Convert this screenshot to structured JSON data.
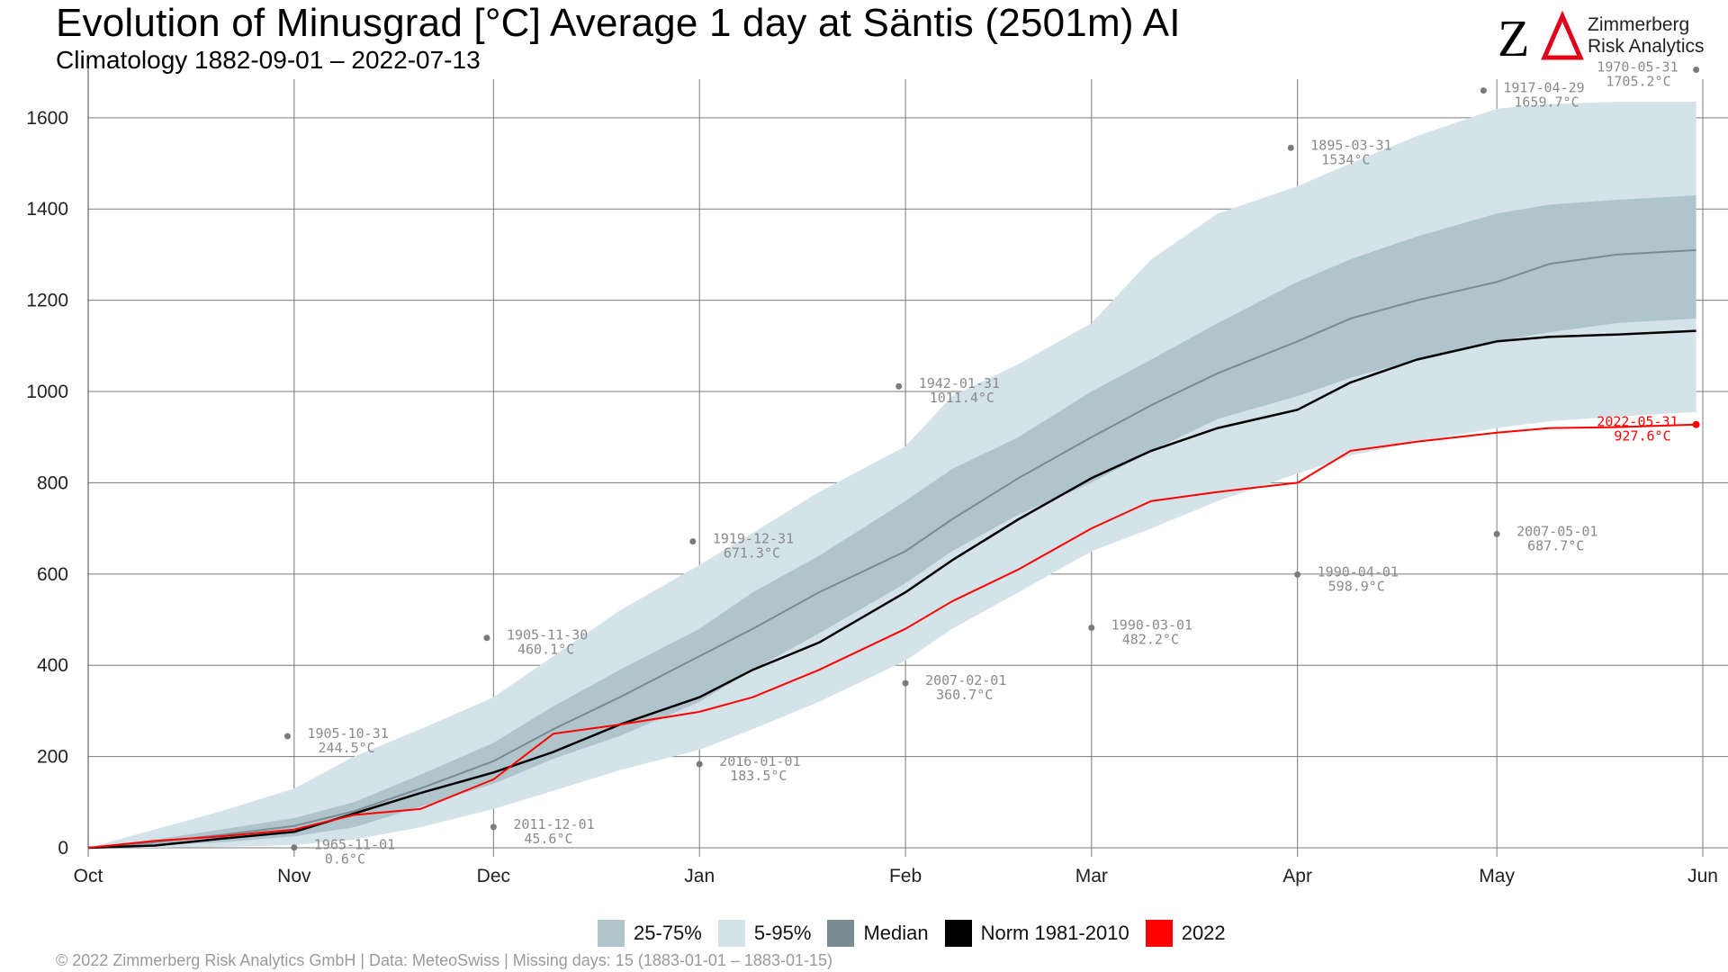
{
  "header": {
    "title": "Evolution of Minusgrad [°C] Average 1 day at Säntis (2501m) AI",
    "subtitle": "Climatology 1882-09-01 – 2022-07-13"
  },
  "logo": {
    "line1": "Zimmerberg",
    "line2": "Risk Analytics"
  },
  "footer": {
    "text": "©  2022 Zimmerberg Risk Analytics GmbH | Data: MeteoSwiss | Missing days: 15 (1883-01-01 – 1883-01-15)"
  },
  "legend": [
    {
      "label": "25-75%",
      "color": "#b0c4cb"
    },
    {
      "label": "5-95%",
      "color": "#d3e3e9"
    },
    {
      "label": "Median",
      "color": "#7a8c93"
    },
    {
      "label": "Norm 1981-2010",
      "color": "#000000"
    },
    {
      "label": "2022",
      "color": "#ff0000"
    }
  ],
  "chart_data": {
    "type": "area",
    "title": "Evolution of Minusgrad [°C] Average 1 day at Säntis (2501m) AI",
    "subtitle": "Climatology 1882-09-01 – 2022-07-13",
    "xlabel": "",
    "ylabel": "",
    "x_ticks": [
      "Oct",
      "Nov",
      "Dec",
      "Jan",
      "Feb",
      "Mar",
      "Apr",
      "May",
      "Jun"
    ],
    "x_tick_days": [
      0,
      31,
      61,
      92,
      123,
      151,
      182,
      212,
      243
    ],
    "ylim": [
      0,
      1720
    ],
    "y_ticks": [
      0,
      200,
      400,
      600,
      800,
      1000,
      1200,
      1400,
      1600
    ],
    "grid": true,
    "legend_position": "bottom",
    "x_days": [
      0,
      10,
      20,
      31,
      40,
      50,
      61,
      70,
      80,
      92,
      100,
      110,
      123,
      130,
      140,
      151,
      160,
      170,
      182,
      190,
      200,
      212,
      220,
      230,
      242
    ],
    "band_5_95": {
      "lower": [
        0,
        0,
        2,
        6,
        18,
        45,
        85,
        125,
        170,
        215,
        260,
        320,
        410,
        480,
        560,
        650,
        700,
        760,
        820,
        860,
        890,
        920,
        935,
        945,
        955
      ],
      "upper": [
        0,
        40,
        80,
        130,
        200,
        260,
        330,
        420,
        520,
        620,
        690,
        780,
        880,
        990,
        1060,
        1150,
        1290,
        1390,
        1450,
        1500,
        1560,
        1620,
        1630,
        1635,
        1635
      ]
    },
    "band_25_75": {
      "lower": [
        0,
        5,
        12,
        25,
        45,
        90,
        140,
        195,
        245,
        320,
        390,
        470,
        580,
        650,
        730,
        800,
        870,
        940,
        990,
        1030,
        1070,
        1110,
        1130,
        1150,
        1160
      ],
      "upper": [
        0,
        18,
        40,
        65,
        100,
        160,
        230,
        310,
        390,
        480,
        560,
        640,
        760,
        830,
        900,
        1000,
        1070,
        1150,
        1240,
        1290,
        1340,
        1390,
        1410,
        1420,
        1430
      ]
    },
    "series": [
      {
        "name": "Median",
        "color": "#7a8c93",
        "values": [
          0,
          12,
          28,
          48,
          80,
          130,
          190,
          260,
          330,
          420,
          480,
          560,
          650,
          720,
          810,
          900,
          970,
          1040,
          1110,
          1160,
          1200,
          1240,
          1280,
          1300,
          1310
        ]
      },
      {
        "name": "Norm 1981-2010",
        "color": "#000000",
        "values": [
          0,
          5,
          20,
          35,
          75,
          120,
          165,
          210,
          270,
          330,
          390,
          450,
          560,
          630,
          720,
          810,
          870,
          920,
          960,
          1020,
          1070,
          1110,
          1120,
          1125,
          1133
        ]
      },
      {
        "name": "2022",
        "color": "#ff0000",
        "values": [
          0,
          15,
          25,
          40,
          72,
          85,
          150,
          250,
          270,
          298,
          330,
          390,
          480,
          540,
          610,
          700,
          760,
          780,
          800,
          870,
          890,
          910,
          920,
          922,
          927.6
        ]
      }
    ],
    "annotations": [
      {
        "date": "1905-10-31",
        "text": "244.5°C",
        "x_day": 30,
        "y": 244.5
      },
      {
        "date": "1965-11-01",
        "text": "0.6°C",
        "x_day": 31,
        "y": 0.6
      },
      {
        "date": "1905-11-30",
        "text": "460.1°C",
        "x_day": 60,
        "y": 460.1
      },
      {
        "date": "2011-12-01",
        "text": "45.6°C",
        "x_day": 61,
        "y": 45.6
      },
      {
        "date": "1919-12-31",
        "text": "671.3°C",
        "x_day": 91,
        "y": 671.3
      },
      {
        "date": "2016-01-01",
        "text": "183.5°C",
        "x_day": 92,
        "y": 183.5
      },
      {
        "date": "1942-01-31",
        "text": "1011.4°C",
        "x_day": 122,
        "y": 1011.4
      },
      {
        "date": "2007-02-01",
        "text": "360.7°C",
        "x_day": 123,
        "y": 360.7
      },
      {
        "date": "1990-03-01",
        "text": "482.2°C",
        "x_day": 151,
        "y": 482.2
      },
      {
        "date": "1895-03-31",
        "text": "1534°C",
        "x_day": 181,
        "y": 1534
      },
      {
        "date": "1990-04-01",
        "text": "598.9°C",
        "x_day": 182,
        "y": 598.9
      },
      {
        "date": "1917-04-29",
        "text": "1659.7°C",
        "x_day": 210,
        "y": 1659.7
      },
      {
        "date": "2007-05-01",
        "text": "687.7°C",
        "x_day": 212,
        "y": 687.7
      },
      {
        "date": "1970-05-31",
        "text": "1705.2°C",
        "x_day": 242,
        "y": 1705.2
      },
      {
        "date": "2022-05-31",
        "text": "927.6°C",
        "x_day": 242,
        "y": 927.6,
        "color": "#ff0000"
      }
    ]
  }
}
